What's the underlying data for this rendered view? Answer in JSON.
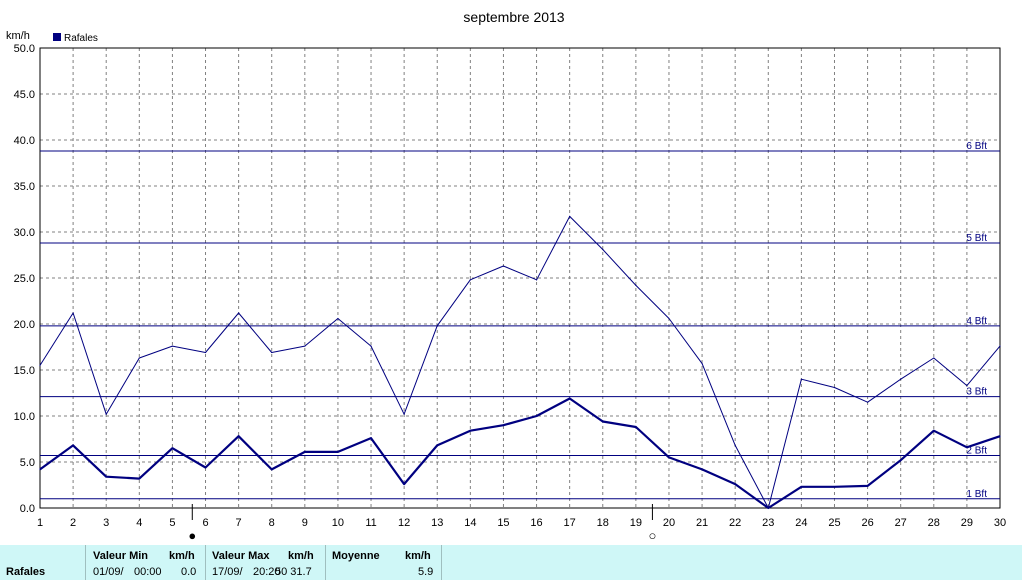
{
  "chart_data": {
    "type": "line",
    "title": "septembre 2013",
    "ylabel": "km/h",
    "legend": [
      {
        "label": "Rafales",
        "color": "#000080"
      }
    ],
    "ylim": [
      0,
      50
    ],
    "yticks": [
      "0.0",
      "5.0",
      "10.0",
      "15.0",
      "20.0",
      "25.0",
      "30.0",
      "35.0",
      "40.0",
      "45.0",
      "50.0"
    ],
    "x": [
      1,
      2,
      3,
      4,
      5,
      6,
      7,
      8,
      9,
      10,
      11,
      12,
      13,
      14,
      15,
      16,
      17,
      18,
      19,
      20,
      21,
      22,
      23,
      24,
      25,
      26,
      27,
      28,
      29,
      30
    ],
    "grid": true,
    "series": [
      {
        "name": "Rafales",
        "style": "thick",
        "values": [
          4.2,
          6.8,
          3.4,
          3.2,
          6.5,
          4.4,
          7.8,
          4.2,
          6.1,
          6.1,
          7.6,
          2.6,
          6.8,
          8.4,
          9.0,
          10.0,
          11.9,
          9.4,
          8.8,
          5.5,
          4.2,
          2.6,
          0.0,
          2.3,
          2.3,
          2.4,
          5.2,
          8.4,
          6.6,
          7.8
        ]
      },
      {
        "name": "",
        "style": "thin",
        "values": [
          15.5,
          21.2,
          10.2,
          16.3,
          17.6,
          16.9,
          21.2,
          16.9,
          17.6,
          20.6,
          17.6,
          10.2,
          19.8,
          24.8,
          26.3,
          24.8,
          31.7,
          28.1,
          24.2,
          20.6,
          15.7,
          6.8,
          0.0,
          14.0,
          13.1,
          11.5,
          14.0,
          16.3,
          13.3,
          17.6
        ]
      }
    ],
    "beaufort": [
      {
        "label": "1 Bft",
        "value": 1.0
      },
      {
        "label": "2 Bft",
        "value": 5.7
      },
      {
        "label": "3 Bft",
        "value": 12.1
      },
      {
        "label": "4 Bft",
        "value": 19.8
      },
      {
        "label": "5 Bft",
        "value": 28.8
      },
      {
        "label": "6 Bft",
        "value": 38.8
      }
    ],
    "moon_phases": [
      {
        "symbol": "●",
        "x": 5.6
      },
      {
        "symbol": "○",
        "x": 19.5
      }
    ]
  },
  "colors": {
    "series": "#000080",
    "grid": "#808080",
    "footer_bg": "#cff7f7"
  },
  "footer": {
    "row_label": "Rafales",
    "min": {
      "header": "Valeur Min",
      "unit": "km/h",
      "date": "01/09/",
      "time": "00:00",
      "value": "0.0"
    },
    "max": {
      "header": "Valeur Max",
      "unit": "km/h",
      "date": "17/09/",
      "time": "20:20",
      "value": "50 31.7"
    },
    "avg": {
      "header": "Moyenne",
      "unit": "km/h",
      "value": "5.9"
    }
  }
}
